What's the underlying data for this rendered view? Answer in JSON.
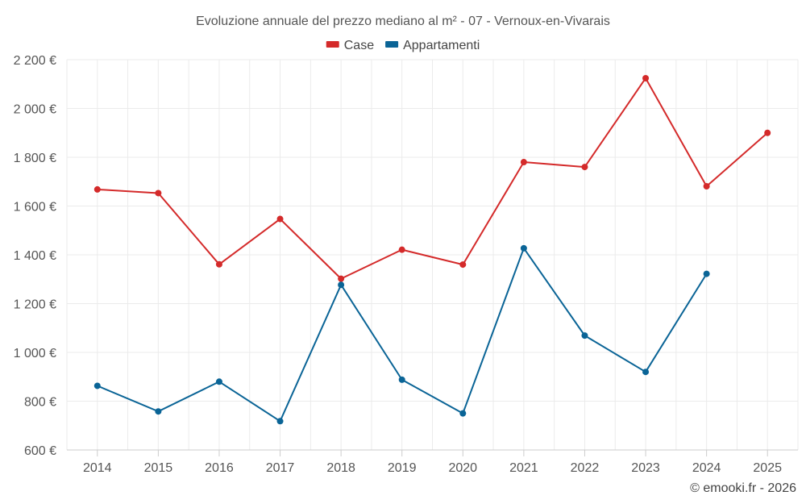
{
  "chart_data": {
    "type": "line",
    "title": "Evoluzione annuale del prezzo mediano al m² - 07 - Vernoux-en-Vivarais",
    "categories": [
      "2014",
      "2015",
      "2016",
      "2017",
      "2018",
      "2019",
      "2020",
      "2021",
      "2022",
      "2023",
      "2024",
      "2025"
    ],
    "series": [
      {
        "name": "Case",
        "color": "#d42a2a",
        "values": [
          1668,
          1653,
          1361,
          1547,
          1302,
          1421,
          1360,
          1780,
          1760,
          2124,
          1681,
          1900
        ]
      },
      {
        "name": "Appartamenti",
        "color": "#0a6496",
        "values": [
          863,
          758,
          880,
          718,
          1277,
          888,
          750,
          1427,
          1069,
          920,
          1322,
          null
        ]
      }
    ],
    "ylim": [
      600,
      2200
    ],
    "yticks": [
      600,
      800,
      1000,
      1200,
      1400,
      1600,
      1800,
      2000,
      2200
    ],
    "ytick_labels": [
      "600 €",
      "800 €",
      "1 000 €",
      "1 200 €",
      "1 400 €",
      "1 600 €",
      "1 800 €",
      "2 000 €",
      "2 200 €"
    ],
    "xlabel": "",
    "ylabel": "",
    "legend_position": "top-center",
    "grid": true
  },
  "credit": "© emooki.fr - 2026"
}
